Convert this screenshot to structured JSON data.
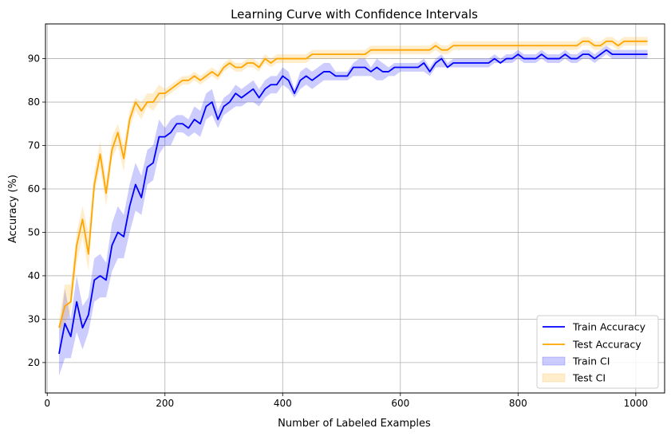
{
  "chart_data": {
    "type": "line",
    "title": "Learning Curve with Confidence Intervals",
    "xlabel": "Number of Labeled Examples",
    "ylabel": "Accuracy (%)",
    "xlim": [
      -3,
      1049
    ],
    "ylim": [
      13,
      98
    ],
    "xticks": [
      0,
      200,
      400,
      600,
      800,
      1000
    ],
    "yticks": [
      20,
      30,
      40,
      50,
      60,
      70,
      80,
      90
    ],
    "grid": true,
    "legend_position": "lower-right",
    "x": [
      20,
      30,
      40,
      50,
      60,
      70,
      80,
      90,
      100,
      110,
      120,
      130,
      140,
      150,
      160,
      170,
      180,
      190,
      200,
      210,
      220,
      230,
      240,
      250,
      260,
      270,
      280,
      290,
      300,
      310,
      320,
      330,
      340,
      350,
      360,
      370,
      380,
      390,
      400,
      410,
      420,
      430,
      440,
      450,
      460,
      470,
      480,
      490,
      500,
      510,
      520,
      530,
      540,
      550,
      560,
      570,
      580,
      590,
      600,
      610,
      620,
      630,
      640,
      650,
      660,
      670,
      680,
      690,
      700,
      710,
      720,
      730,
      740,
      750,
      760,
      770,
      780,
      790,
      800,
      810,
      820,
      830,
      840,
      850,
      860,
      870,
      880,
      890,
      900,
      910,
      920,
      930,
      940,
      950,
      960,
      970,
      980,
      990,
      1000,
      1010,
      1020
    ],
    "series": [
      {
        "name": "Train Accuracy",
        "color": "#0000ff",
        "values": [
          22,
          29,
          26,
          34,
          28,
          31,
          39,
          40,
          39,
          47,
          50,
          49,
          56,
          61,
          58,
          65,
          66,
          72,
          72,
          73,
          75,
          75,
          74,
          76,
          75,
          79,
          80,
          76,
          79,
          80,
          82,
          81,
          82,
          83,
          81,
          83,
          84,
          84,
          86,
          85,
          82,
          85,
          86,
          85,
          86,
          87,
          87,
          86,
          86,
          86,
          88,
          88,
          88,
          87,
          88,
          87,
          87,
          88,
          88,
          88,
          88,
          88,
          89,
          87,
          89,
          90,
          88,
          89,
          89,
          89,
          89,
          89,
          89,
          89,
          90,
          89,
          90,
          90,
          91,
          90,
          90,
          90,
          91,
          90,
          90,
          90,
          91,
          90,
          90,
          91,
          91,
          90,
          91,
          92,
          91,
          91,
          91,
          91,
          91,
          91,
          91
        ],
        "ci_lower": [
          17,
          21,
          21,
          27,
          23,
          27,
          34,
          35,
          35,
          41,
          44,
          44,
          50,
          55,
          54,
          61,
          62,
          68,
          70,
          70,
          73,
          73,
          72,
          73,
          72,
          76,
          77,
          74,
          77,
          78,
          79,
          79,
          80,
          80,
          79,
          81,
          82,
          82,
          84,
          83,
          81,
          83,
          84,
          83,
          84,
          85,
          85,
          85,
          85,
          85,
          86,
          86,
          86,
          86,
          85,
          85,
          86,
          86,
          87,
          87,
          87,
          87,
          87,
          86,
          88,
          88,
          88,
          88,
          88,
          88,
          88,
          88,
          88,
          88,
          89,
          89,
          89,
          89,
          90,
          89,
          89,
          89,
          90,
          89,
          89,
          89,
          90,
          89,
          89,
          90,
          90,
          89,
          90,
          91,
          90,
          90,
          90,
          90,
          90,
          90,
          90
        ],
        "ci_upper": [
          27,
          37,
          30,
          40,
          33,
          35,
          44,
          45,
          43,
          52,
          56,
          54,
          61,
          66,
          63,
          69,
          70,
          76,
          74,
          76,
          77,
          77,
          76,
          79,
          78,
          82,
          83,
          78,
          81,
          82,
          84,
          83,
          84,
          85,
          83,
          85,
          86,
          86,
          88,
          87,
          83,
          87,
          88,
          87,
          88,
          89,
          89,
          87,
          87,
          87,
          89,
          90,
          90,
          88,
          90,
          89,
          88,
          89,
          89,
          89,
          89,
          89,
          90,
          88,
          90,
          91,
          89,
          90,
          90,
          90,
          90,
          90,
          90,
          90,
          91,
          90,
          91,
          91,
          92,
          91,
          91,
          91,
          92,
          91,
          91,
          91,
          92,
          91,
          91,
          92,
          92,
          91,
          92,
          93,
          92,
          92,
          92,
          92,
          92,
          92,
          92
        ]
      },
      {
        "name": "Test Accuracy",
        "color": "#ffa500",
        "values": [
          28,
          33,
          34,
          47,
          53,
          45,
          61,
          68,
          59,
          69,
          73,
          67,
          76,
          80,
          78,
          80,
          80,
          82,
          82,
          83,
          84,
          85,
          85,
          86,
          85,
          86,
          87,
          86,
          88,
          89,
          88,
          88,
          89,
          89,
          88,
          90,
          89,
          90,
          90,
          90,
          90,
          90,
          90,
          91,
          91,
          91,
          91,
          91,
          91,
          91,
          91,
          91,
          91,
          92,
          92,
          92,
          92,
          92,
          92,
          92,
          92,
          92,
          92,
          92,
          93,
          92,
          92,
          93,
          93,
          93,
          93,
          93,
          93,
          93,
          93,
          93,
          93,
          93,
          93,
          93,
          93,
          93,
          93,
          93,
          93,
          93,
          93,
          93,
          93,
          94,
          94,
          93,
          93,
          94,
          94,
          93,
          94,
          94,
          94,
          94,
          94
        ],
        "ci_lower": [
          27,
          29,
          32,
          43,
          49,
          41,
          59,
          65,
          56,
          67,
          70,
          64,
          74,
          78,
          76,
          79,
          78,
          80,
          81,
          82,
          83,
          84,
          84,
          85,
          84,
          85,
          86,
          85,
          87,
          88,
          87,
          87,
          88,
          88,
          87,
          89,
          88,
          89,
          89,
          89,
          89,
          89,
          89,
          90,
          90,
          90,
          90,
          90,
          90,
          90,
          90,
          90,
          90,
          91,
          91,
          91,
          91,
          91,
          91,
          91,
          91,
          91,
          91,
          91,
          92,
          91,
          91,
          92,
          92,
          92,
          92,
          92,
          92,
          92,
          92,
          92,
          92,
          92,
          92,
          92,
          92,
          92,
          92,
          92,
          92,
          92,
          92,
          92,
          92,
          93,
          93,
          92,
          92,
          93,
          93,
          92,
          93,
          93,
          93,
          93,
          93
        ],
        "ci_upper": [
          30,
          38,
          38,
          50,
          56,
          50,
          64,
          71,
          62,
          72,
          75,
          70,
          78,
          81,
          80,
          82,
          82,
          84,
          83,
          84,
          85,
          86,
          86,
          87,
          86,
          87,
          88,
          87,
          89,
          90,
          89,
          89,
          90,
          90,
          89,
          91,
          90,
          91,
          91,
          91,
          91,
          91,
          91,
          92,
          92,
          92,
          92,
          92,
          92,
          92,
          92,
          92,
          92,
          93,
          93,
          93,
          93,
          93,
          93,
          93,
          93,
          93,
          93,
          93,
          94,
          93,
          93,
          94,
          94,
          94,
          94,
          94,
          94,
          94,
          94,
          94,
          94,
          94,
          94,
          94,
          94,
          94,
          94,
          94,
          94,
          94,
          94,
          94,
          94,
          95,
          95,
          94,
          94,
          95,
          95,
          94,
          95,
          95,
          95,
          95,
          95
        ]
      }
    ],
    "ci_series": [
      {
        "name": "Train CI",
        "color": "#0000ff"
      },
      {
        "name": "Test CI",
        "color": "#ffa500"
      }
    ]
  }
}
